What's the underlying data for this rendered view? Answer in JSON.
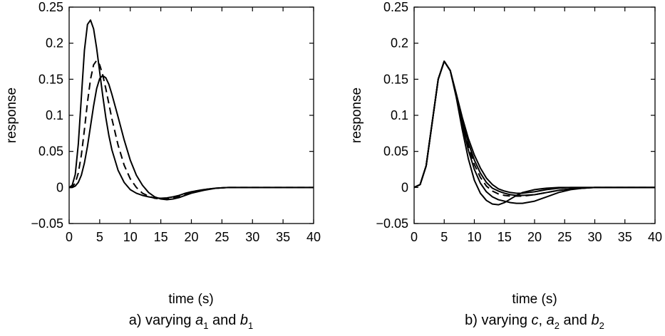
{
  "chart_data": [
    {
      "type": "line",
      "xlabel": "time (s)",
      "ylabel": "response",
      "caption": {
        "prefix": "a) varying ",
        "v1": "a",
        "s1": "1",
        "mid": " and ",
        "v2": "b",
        "s2": "1",
        "mid2": "",
        "v3": "",
        "s3": ""
      },
      "xlim": [
        0,
        40
      ],
      "ylim": [
        -0.05,
        0.25
      ],
      "xticks": [
        "0",
        "5",
        "10",
        "15",
        "20",
        "25",
        "30",
        "35",
        "40"
      ],
      "yticks": [
        "−0.05",
        "0",
        "0.05",
        "0.1",
        "0.15",
        "0.2",
        "0.25"
      ],
      "grid": false,
      "series": [
        {
          "style": "solid",
          "x": [
            0,
            0.5,
            1,
            1.5,
            2,
            2.5,
            3,
            3.5,
            4,
            4.5,
            5,
            5.5,
            6,
            6.5,
            7,
            8,
            9,
            10,
            11,
            12,
            13,
            14,
            15,
            16,
            17,
            18,
            19,
            20,
            22,
            24,
            26,
            28,
            30,
            35,
            40
          ],
          "y": [
            0,
            0.003,
            0.018,
            0.06,
            0.125,
            0.19,
            0.226,
            0.232,
            0.22,
            0.193,
            0.16,
            0.127,
            0.097,
            0.072,
            0.052,
            0.024,
            0.007,
            -0.003,
            -0.008,
            -0.011,
            -0.013,
            -0.0145,
            -0.015,
            -0.0145,
            -0.013,
            -0.011,
            -0.008,
            -0.006,
            -0.003,
            -0.001,
            0,
            0,
            0,
            0,
            0
          ]
        },
        {
          "style": "dashed",
          "x": [
            0,
            0.5,
            1,
            1.5,
            2,
            2.5,
            3,
            3.5,
            4,
            4.5,
            5,
            5.5,
            6,
            6.5,
            7,
            8,
            9,
            10,
            11,
            12,
            13,
            14,
            15,
            16,
            17,
            18,
            19,
            20,
            22,
            24,
            26,
            28,
            30,
            35,
            40
          ],
          "y": [
            0,
            0.001,
            0.006,
            0.02,
            0.045,
            0.08,
            0.118,
            0.15,
            0.17,
            0.176,
            0.17,
            0.156,
            0.137,
            0.116,
            0.095,
            0.059,
            0.031,
            0.012,
            0,
            -0.008,
            -0.012,
            -0.015,
            -0.016,
            -0.016,
            -0.014,
            -0.012,
            -0.009,
            -0.006,
            -0.003,
            -0.001,
            0,
            0,
            0,
            0,
            0
          ]
        },
        {
          "style": "solid",
          "x": [
            0,
            0.5,
            1,
            1.5,
            2,
            2.5,
            3,
            3.5,
            4,
            4.5,
            5,
            5.5,
            6,
            6.5,
            7,
            8,
            9,
            10,
            11,
            12,
            13,
            14,
            15,
            16,
            17,
            18,
            19,
            20,
            22,
            24,
            26,
            28,
            30,
            35,
            40
          ],
          "y": [
            0,
            0,
            0.002,
            0.007,
            0.017,
            0.034,
            0.057,
            0.085,
            0.113,
            0.137,
            0.151,
            0.155,
            0.152,
            0.143,
            0.129,
            0.098,
            0.066,
            0.038,
            0.017,
            0.003,
            -0.007,
            -0.013,
            -0.016,
            -0.017,
            -0.016,
            -0.014,
            -0.011,
            -0.008,
            -0.004,
            -0.001,
            0,
            0,
            0,
            0,
            0
          ]
        }
      ]
    },
    {
      "type": "line",
      "xlabel": "time (s)",
      "ylabel": "response",
      "caption": {
        "prefix": "b) varying ",
        "v1": "c",
        "s1": "",
        "mid": ", ",
        "v2": "a",
        "s2": "2",
        "mid2": " and ",
        "v3": "b",
        "s3": "2"
      },
      "xlim": [
        0,
        40
      ],
      "ylim": [
        -0.05,
        0.25
      ],
      "xticks": [
        "0",
        "5",
        "10",
        "15",
        "20",
        "25",
        "30",
        "35",
        "40"
      ],
      "yticks": [
        "−0.05",
        "0",
        "0.05",
        "0.1",
        "0.15",
        "0.2",
        "0.25"
      ],
      "grid": false,
      "series": [
        {
          "style": "solid",
          "x": [
            0,
            1,
            2,
            3,
            4,
            5,
            6,
            7,
            8,
            9,
            10,
            11,
            12,
            13,
            14,
            15,
            16,
            17,
            18,
            20,
            22,
            24,
            26,
            28,
            30,
            35,
            40
          ],
          "y": [
            0,
            0.004,
            0.03,
            0.09,
            0.15,
            0.175,
            0.162,
            0.125,
            0.08,
            0.04,
            0.01,
            -0.008,
            -0.018,
            -0.023,
            -0.024,
            -0.021,
            -0.016,
            -0.011,
            -0.007,
            -0.003,
            -0.001,
            0,
            0,
            0,
            0,
            0,
            0
          ]
        },
        {
          "style": "solid",
          "x": [
            0,
            1,
            2,
            3,
            4,
            5,
            6,
            7,
            8,
            9,
            10,
            11,
            12,
            13,
            14,
            15,
            16,
            17,
            18,
            20,
            22,
            24,
            26,
            28,
            30,
            35,
            40
          ],
          "y": [
            0,
            0.004,
            0.03,
            0.09,
            0.15,
            0.175,
            0.162,
            0.127,
            0.087,
            0.052,
            0.025,
            0.006,
            -0.006,
            -0.013,
            -0.017,
            -0.019,
            -0.021,
            -0.022,
            -0.022,
            -0.019,
            -0.013,
            -0.007,
            -0.003,
            -0.001,
            0,
            0,
            0
          ]
        },
        {
          "style": "dashed",
          "x": [
            0,
            1,
            2,
            3,
            4,
            5,
            6,
            7,
            8,
            9,
            10,
            11,
            12,
            13,
            14,
            15,
            16,
            17,
            18,
            20,
            22,
            24,
            26,
            28,
            30,
            35,
            40
          ],
          "y": [
            0,
            0.004,
            0.03,
            0.09,
            0.15,
            0.175,
            0.162,
            0.128,
            0.09,
            0.058,
            0.032,
            0.014,
            0.002,
            -0.005,
            -0.009,
            -0.011,
            -0.012,
            -0.012,
            -0.012,
            -0.01,
            -0.007,
            -0.004,
            -0.002,
            -0.001,
            0,
            0,
            0
          ]
        },
        {
          "style": "solid",
          "x": [
            0,
            1,
            2,
            3,
            4,
            5,
            6,
            7,
            8,
            9,
            10,
            11,
            12,
            13,
            14,
            15,
            16,
            17,
            18,
            20,
            22,
            24,
            26,
            28,
            30,
            35,
            40
          ],
          "y": [
            0,
            0.004,
            0.03,
            0.09,
            0.15,
            0.175,
            0.162,
            0.129,
            0.093,
            0.062,
            0.038,
            0.02,
            0.007,
            -0.001,
            -0.005,
            -0.008,
            -0.01,
            -0.011,
            -0.011,
            -0.01,
            -0.007,
            -0.004,
            -0.002,
            -0.001,
            0,
            0,
            0
          ]
        },
        {
          "style": "solid",
          "x": [
            0,
            1,
            2,
            3,
            4,
            5,
            6,
            7,
            8,
            9,
            10,
            11,
            12,
            13,
            14,
            15,
            16,
            17,
            18,
            20,
            22,
            24,
            26,
            28,
            30,
            35,
            40
          ],
          "y": [
            0,
            0.004,
            0.03,
            0.09,
            0.15,
            0.175,
            0.162,
            0.13,
            0.097,
            0.068,
            0.045,
            0.027,
            0.013,
            0.004,
            -0.002,
            -0.005,
            -0.007,
            -0.008,
            -0.008,
            -0.006,
            -0.003,
            -0.001,
            0,
            0,
            0,
            0,
            0
          ]
        }
      ]
    }
  ]
}
